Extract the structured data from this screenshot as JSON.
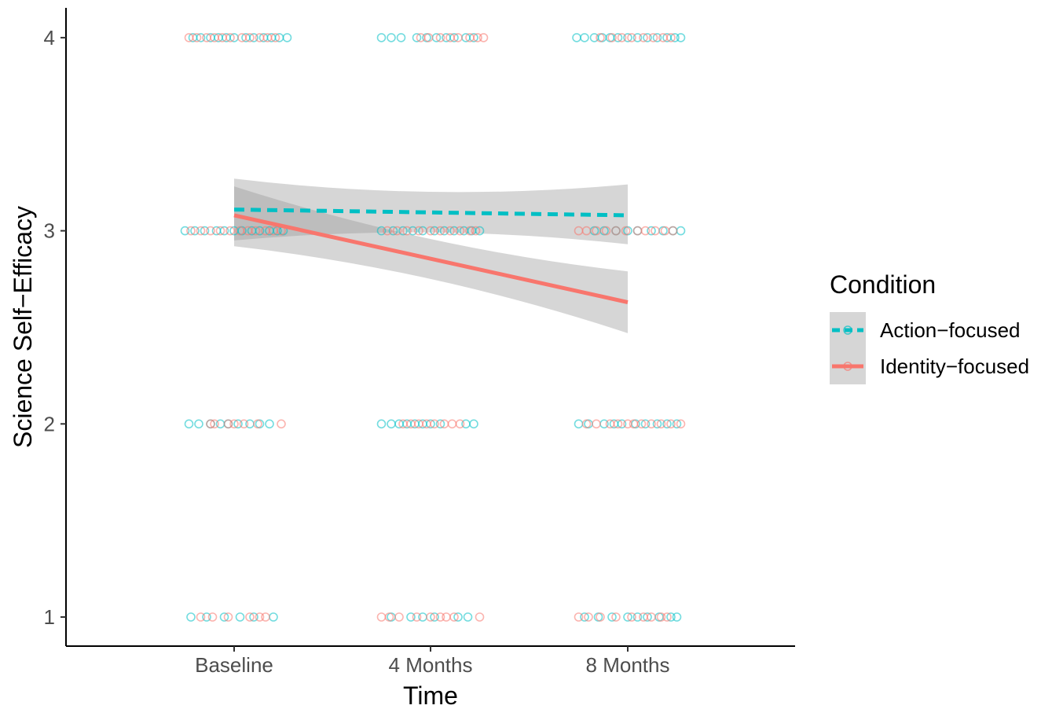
{
  "chart_data": {
    "type": "scatter",
    "xlabel": "Time",
    "ylabel": "Science Self−Efficacy",
    "categories": [
      "Baseline",
      "4 Months",
      "8 Months"
    ],
    "y_ticks": [
      "1",
      "2",
      "3",
      "4"
    ],
    "ylim": [
      0.85,
      4.15
    ],
    "grid": false,
    "legend": {
      "title": "Condition",
      "placement": "right",
      "entries": [
        "Action−focused",
        "Identity−focused"
      ]
    },
    "series": [
      {
        "name": "Action−focused",
        "color": "#00BFC4",
        "line_style": "dashed",
        "fit": {
          "x": [
            "Baseline",
            "8 Months"
          ],
          "y": [
            3.11,
            3.08
          ]
        },
        "ci_lower": [
          2.95,
          2.93
        ],
        "ci_upper": [
          3.27,
          3.24
        ],
        "points": {
          "Baseline": {
            "4": [
              -0.21,
              -0.17,
              -0.12,
              -0.08,
              -0.04,
              0.0,
              0.06,
              0.1,
              0.15,
              0.19,
              0.23,
              0.27
            ],
            "3": [
              -0.25,
              -0.2,
              -0.15,
              -0.09,
              -0.05,
              0.0,
              0.04,
              0.09,
              0.13,
              0.18,
              0.22,
              0.25
            ],
            "2": [
              -0.23,
              -0.18,
              -0.12,
              -0.07,
              -0.03,
              0.02,
              0.08,
              0.13,
              0.18
            ],
            "1": [
              -0.22,
              -0.14,
              -0.05,
              0.03,
              0.1,
              0.2
            ]
          },
          "4 Months": {
            "4": [
              -0.25,
              -0.2,
              -0.15,
              -0.07,
              -0.02,
              0.03,
              0.08,
              0.12,
              0.18,
              0.22
            ],
            "3": [
              -0.25,
              -0.19,
              -0.14,
              -0.09,
              -0.04,
              0.02,
              0.07,
              0.12,
              0.17,
              0.21,
              0.25
            ],
            "2": [
              -0.25,
              -0.2,
              -0.16,
              -0.12,
              -0.08,
              -0.04,
              0.0,
              0.05,
              0.18,
              0.22
            ],
            "1": [
              -0.2,
              -0.1,
              -0.04,
              0.02,
              0.14,
              0.19
            ]
          },
          "8 Months": {
            "4": [
              -0.26,
              -0.22,
              -0.17,
              -0.13,
              -0.09,
              -0.05,
              0.0,
              0.05,
              0.1,
              0.15,
              0.2,
              0.24,
              0.27
            ],
            "3": [
              -0.17,
              -0.12,
              -0.06,
              0.0,
              0.05,
              0.12,
              0.18,
              0.23,
              0.27
            ],
            "2": [
              -0.25,
              -0.2,
              -0.12,
              -0.07,
              -0.03,
              0.04,
              0.09,
              0.15,
              0.2,
              0.25
            ],
            "1": [
              -0.22,
              -0.15,
              -0.08,
              0.0,
              0.05,
              0.1,
              0.16,
              0.22,
              0.25
            ]
          }
        }
      },
      {
        "name": "Identity−focused",
        "color": "#F8766D",
        "line_style": "solid",
        "fit": {
          "x": [
            "Baseline",
            "8 Months"
          ],
          "y": [
            3.08,
            2.63
          ]
        },
        "ci_lower": [
          2.92,
          2.47
        ],
        "ci_upper": [
          3.23,
          2.79
        ],
        "points": {
          "Baseline": {
            "4": [
              -0.23,
              -0.19,
              -0.14,
              -0.1,
              -0.06,
              -0.02,
              0.04,
              0.08,
              0.13,
              0.17,
              0.21
            ],
            "3": [
              -0.22,
              -0.17,
              -0.12,
              -0.07,
              -0.02,
              0.03,
              0.07,
              0.11,
              0.16,
              0.2,
              0.24
            ],
            "2": [
              -0.12,
              -0.1,
              -0.03,
              0.0,
              0.05,
              0.12,
              0.24
            ],
            "1": [
              -0.17,
              -0.11,
              -0.03,
              0.08,
              0.13,
              0.16
            ]
          },
          "4 Months": {
            "4": [
              -0.05,
              -0.01,
              0.05,
              0.1,
              0.14,
              0.2,
              0.24,
              0.27
            ],
            "3": [
              -0.22,
              -0.17,
              -0.12,
              -0.06,
              0.0,
              0.05,
              0.1,
              0.15,
              0.2,
              0.23
            ],
            "2": [
              -0.14,
              -0.1,
              -0.06,
              -0.02,
              0.02,
              0.07,
              0.11,
              0.15
            ],
            "1": [
              -0.25,
              -0.21,
              -0.16,
              -0.07,
              0.0,
              0.05,
              0.08,
              0.12,
              0.25
            ]
          },
          "8 Months": {
            "4": [
              -0.14,
              -0.08,
              -0.03,
              0.02,
              0.08,
              0.13,
              0.18,
              0.22
            ],
            "3": [
              -0.25,
              -0.21,
              -0.16,
              -0.11,
              -0.06,
              -0.01,
              0.05,
              0.09,
              0.14,
              0.19,
              0.23
            ],
            "2": [
              -0.21,
              -0.16,
              -0.09,
              -0.05,
              0.0,
              0.03,
              0.07,
              0.12,
              0.17,
              0.22,
              0.27
            ],
            "1": [
              -0.25,
              -0.2,
              -0.14,
              -0.06,
              0.02,
              0.08,
              0.12,
              0.17,
              0.2
            ]
          }
        }
      }
    ]
  }
}
